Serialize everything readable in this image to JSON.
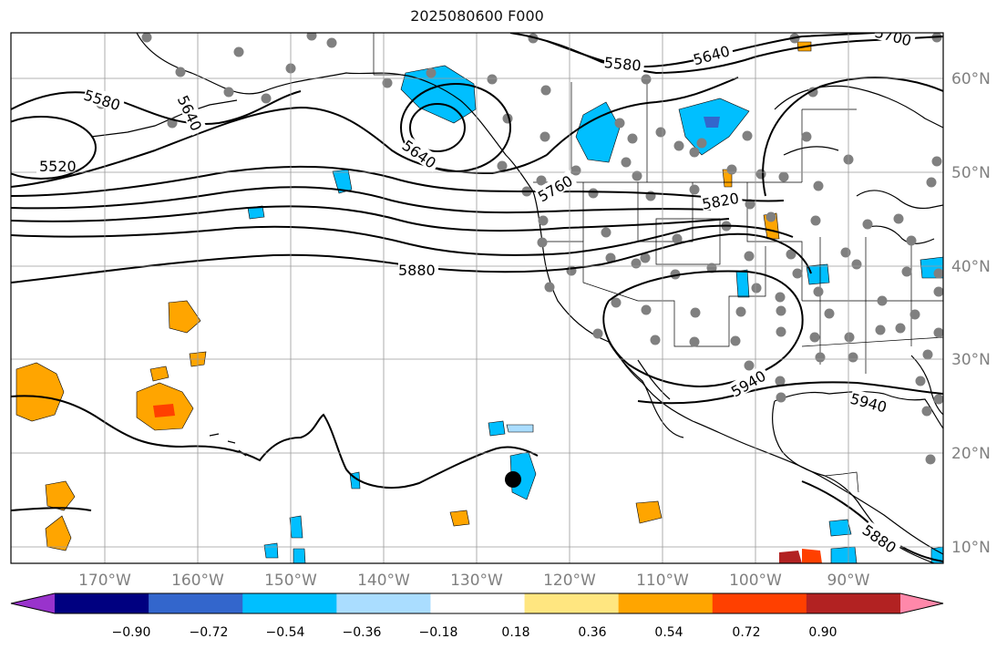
{
  "title": "2025080600 F000",
  "map": {
    "lon_labels": [
      "170°W",
      "160°W",
      "150°W",
      "140°W",
      "130°W",
      "120°W",
      "110°W",
      "100°W",
      "90°W"
    ],
    "lat_labels": [
      "60°N",
      "50°N",
      "40°N",
      "30°N",
      "20°N",
      "10°N"
    ],
    "contour_labels": [
      "5520",
      "5580",
      "5640",
      "5700",
      "5580",
      "5640",
      "5640",
      "5760",
      "5820",
      "5880",
      "5940",
      "5940",
      "5880"
    ],
    "grid": true
  },
  "colorbar": {
    "tick_labels": [
      "−0.90",
      "−0.72",
      "−0.54",
      "−0.36",
      "−0.18",
      "0.18",
      "0.36",
      "0.54",
      "0.72",
      "0.90"
    ],
    "colors": [
      "#9933cc",
      "#000080",
      "#3366cc",
      "#00bfff",
      "#aaddff",
      "#ffffff",
      "#ffe680",
      "#ffa500",
      "#ff4000",
      "#b22222",
      "#ff88aa"
    ]
  }
}
